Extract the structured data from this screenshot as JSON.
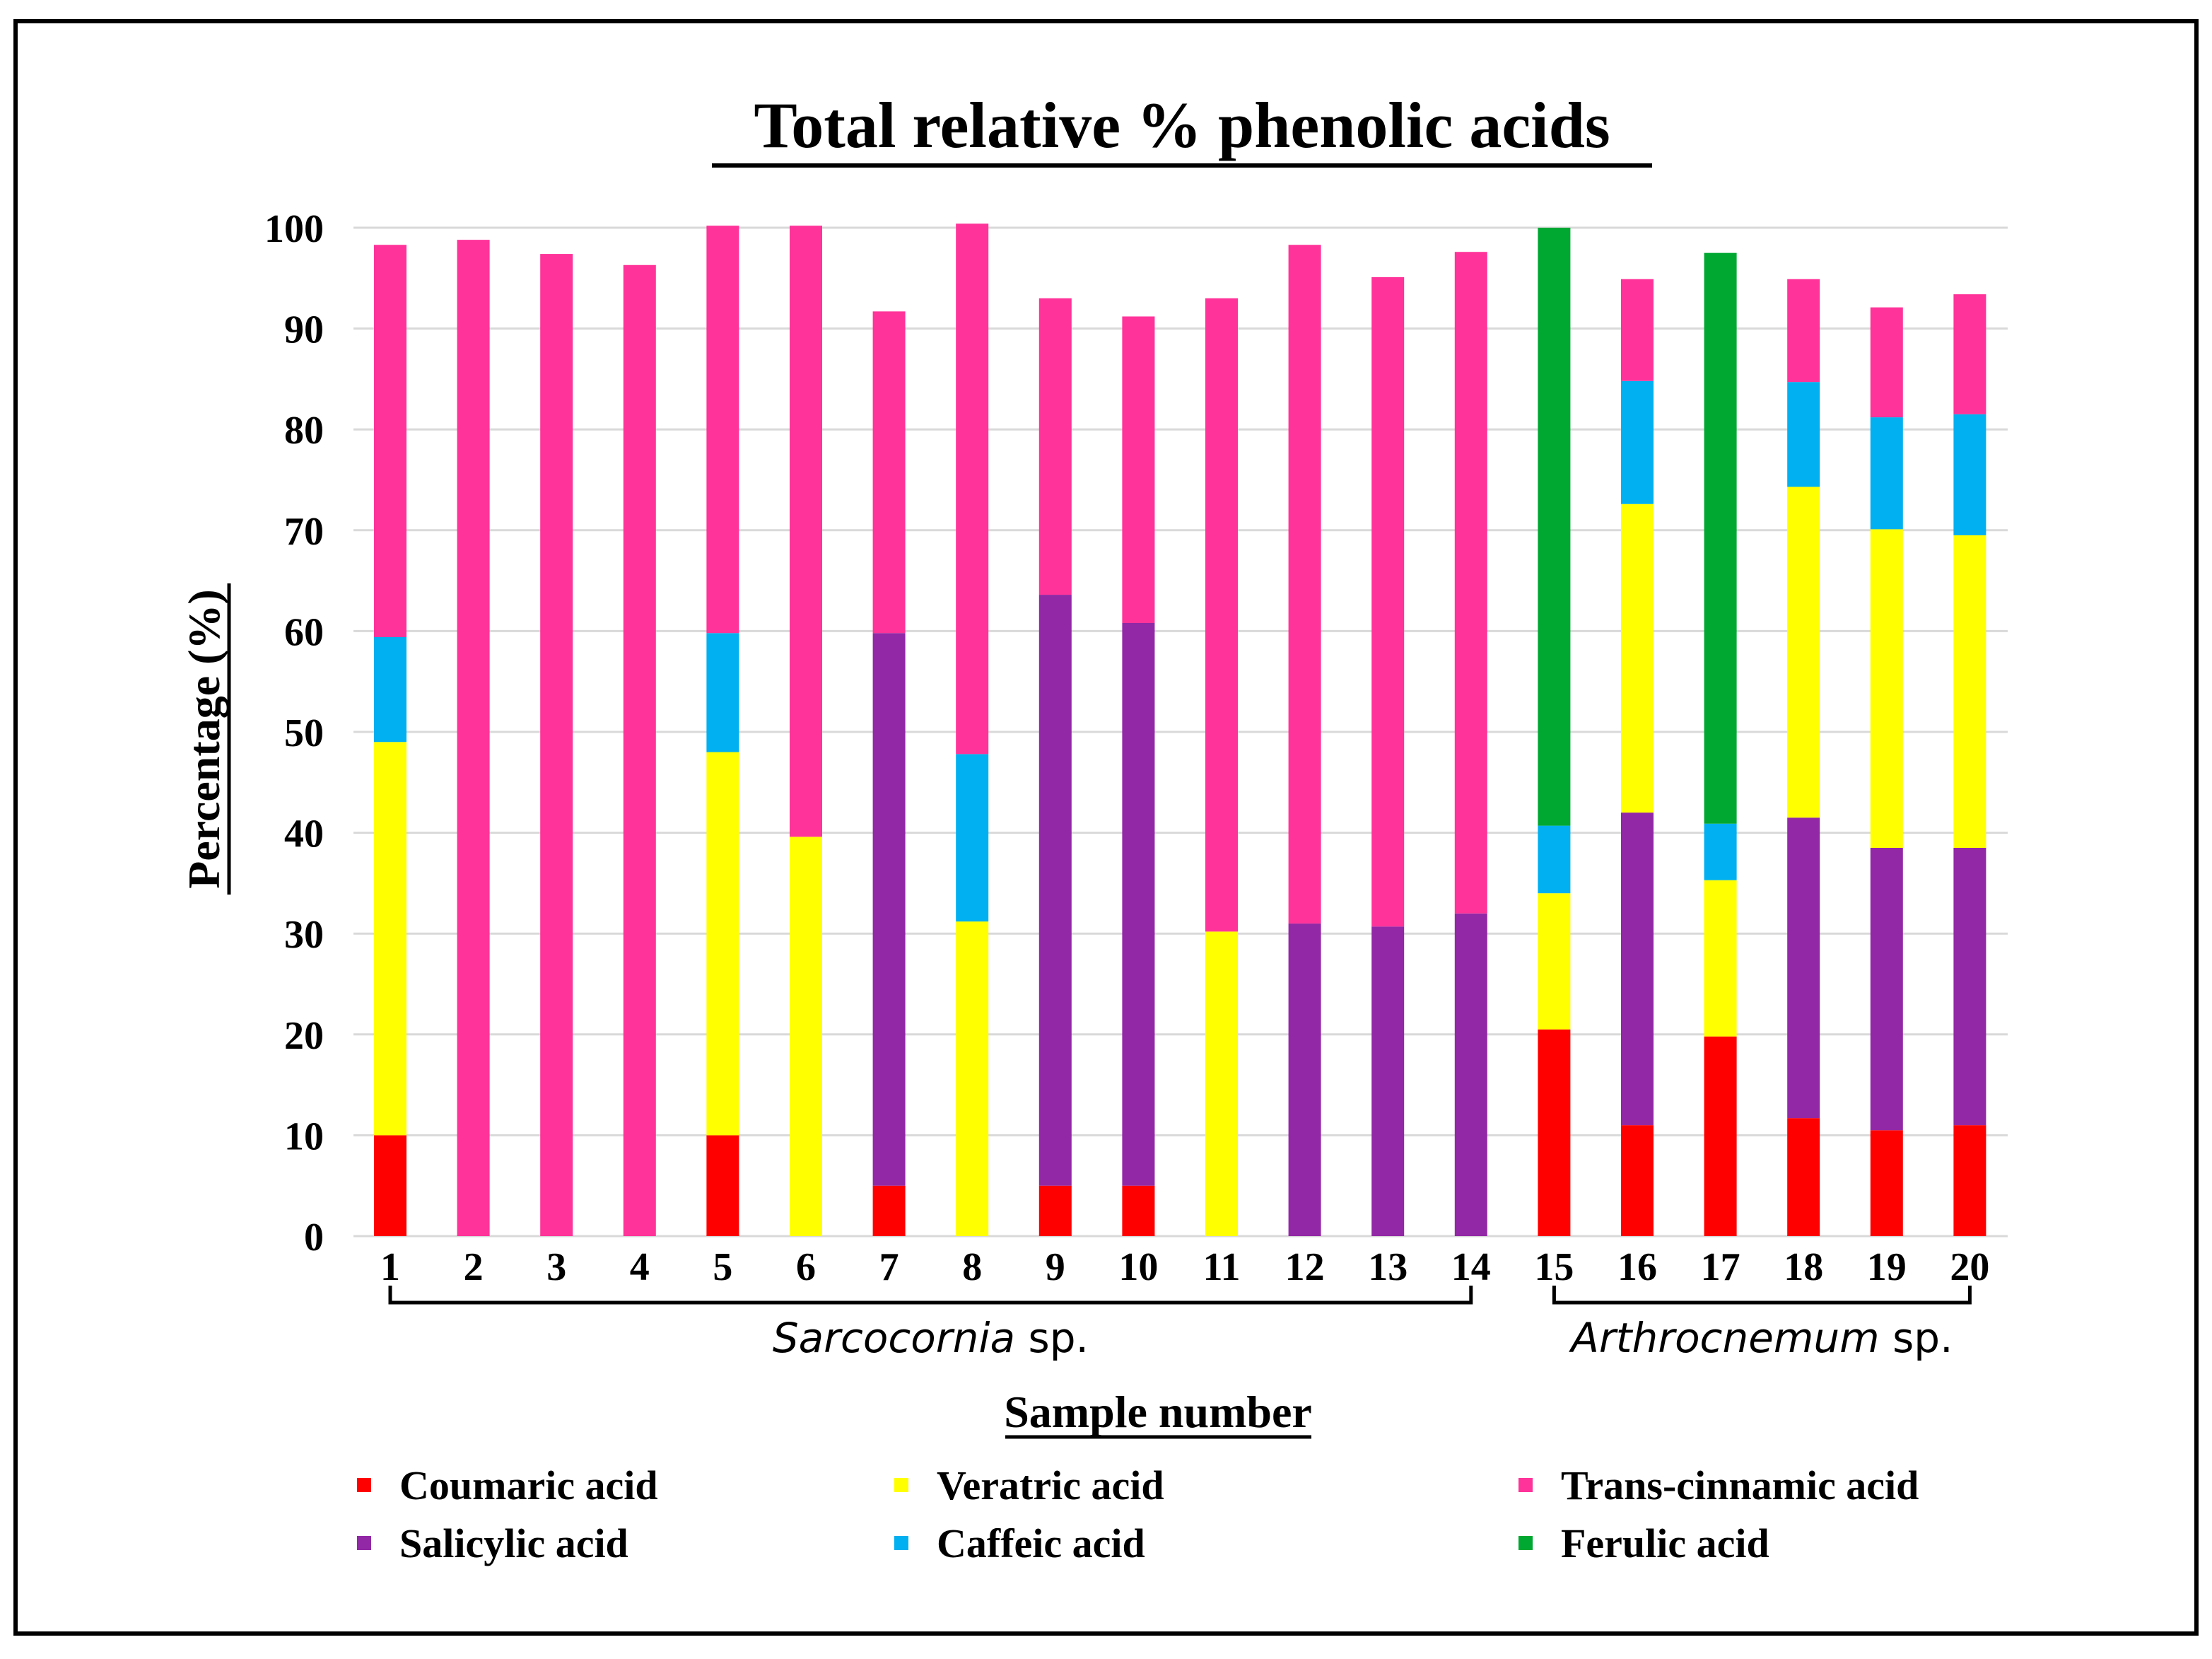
{
  "chart_data": {
    "type": "bar",
    "stacked": true,
    "title": "Total relative % phenolic acids",
    "xlabel": "Sample number",
    "ylabel": "Percentage (%)",
    "ylim": [
      0,
      100
    ],
    "yticks": [
      0,
      10,
      20,
      30,
      40,
      50,
      60,
      70,
      80,
      90,
      100
    ],
    "grid": true,
    "categories": [
      "1",
      "2",
      "3",
      "4",
      "5",
      "6",
      "7",
      "8",
      "9",
      "10",
      "11",
      "12",
      "13",
      "14",
      "15",
      "16",
      "17",
      "18",
      "19",
      "20"
    ],
    "groups": [
      {
        "label_genus": "Sarcocornia",
        "label_suffix": " sp.",
        "from": "1",
        "to": "14"
      },
      {
        "label_genus": "Arthrocnemum",
        "label_suffix": " sp.",
        "from": "15",
        "to": "20"
      }
    ],
    "legend_position": "bottom",
    "series": [
      {
        "name": "Coumaric acid",
        "color": "#ff0000",
        "values": [
          10,
          0,
          0,
          0,
          10,
          0,
          5,
          0,
          5,
          5,
          0,
          0,
          0,
          0,
          20.5,
          11,
          19.8,
          11.7,
          10.5,
          11
        ]
      },
      {
        "name": "Salicylic acid",
        "color": "#9228a6",
        "values": [
          0,
          0,
          0,
          0,
          0,
          0,
          54.8,
          0,
          58.6,
          55.8,
          0,
          31,
          30.7,
          32,
          0,
          31,
          0,
          29.8,
          28,
          27.5
        ]
      },
      {
        "name": "Veratric acid",
        "color": "#ffff00",
        "values": [
          39,
          0,
          0,
          0,
          38,
          39.6,
          0,
          31.2,
          0,
          0,
          30.2,
          0,
          0,
          0,
          13.5,
          30.6,
          15.5,
          32.8,
          31.6,
          31
        ]
      },
      {
        "name": "Caffeic acid",
        "color": "#00b0f0",
        "values": [
          10.4,
          0,
          0,
          0,
          11.8,
          0,
          0,
          16.6,
          0,
          0,
          0,
          0,
          0,
          0,
          6.7,
          12.2,
          5.6,
          10.4,
          11.1,
          12
        ]
      },
      {
        "name": "Trans-cinnamic acid",
        "color": "#ff3399",
        "values": [
          38.9,
          98.8,
          97.4,
          96.3,
          40.4,
          60.6,
          31.9,
          52.6,
          29.4,
          30.4,
          62.8,
          67.3,
          64.4,
          65.6,
          0,
          10.1,
          0,
          10.2,
          10.9,
          11.9
        ]
      },
      {
        "name": "Ferulic acid",
        "color": "#00a832",
        "values": [
          0,
          0,
          0,
          0,
          0,
          0,
          0,
          0,
          0,
          0,
          0,
          0,
          0,
          0,
          59.3,
          0,
          56.6,
          0,
          0,
          0
        ]
      }
    ]
  }
}
